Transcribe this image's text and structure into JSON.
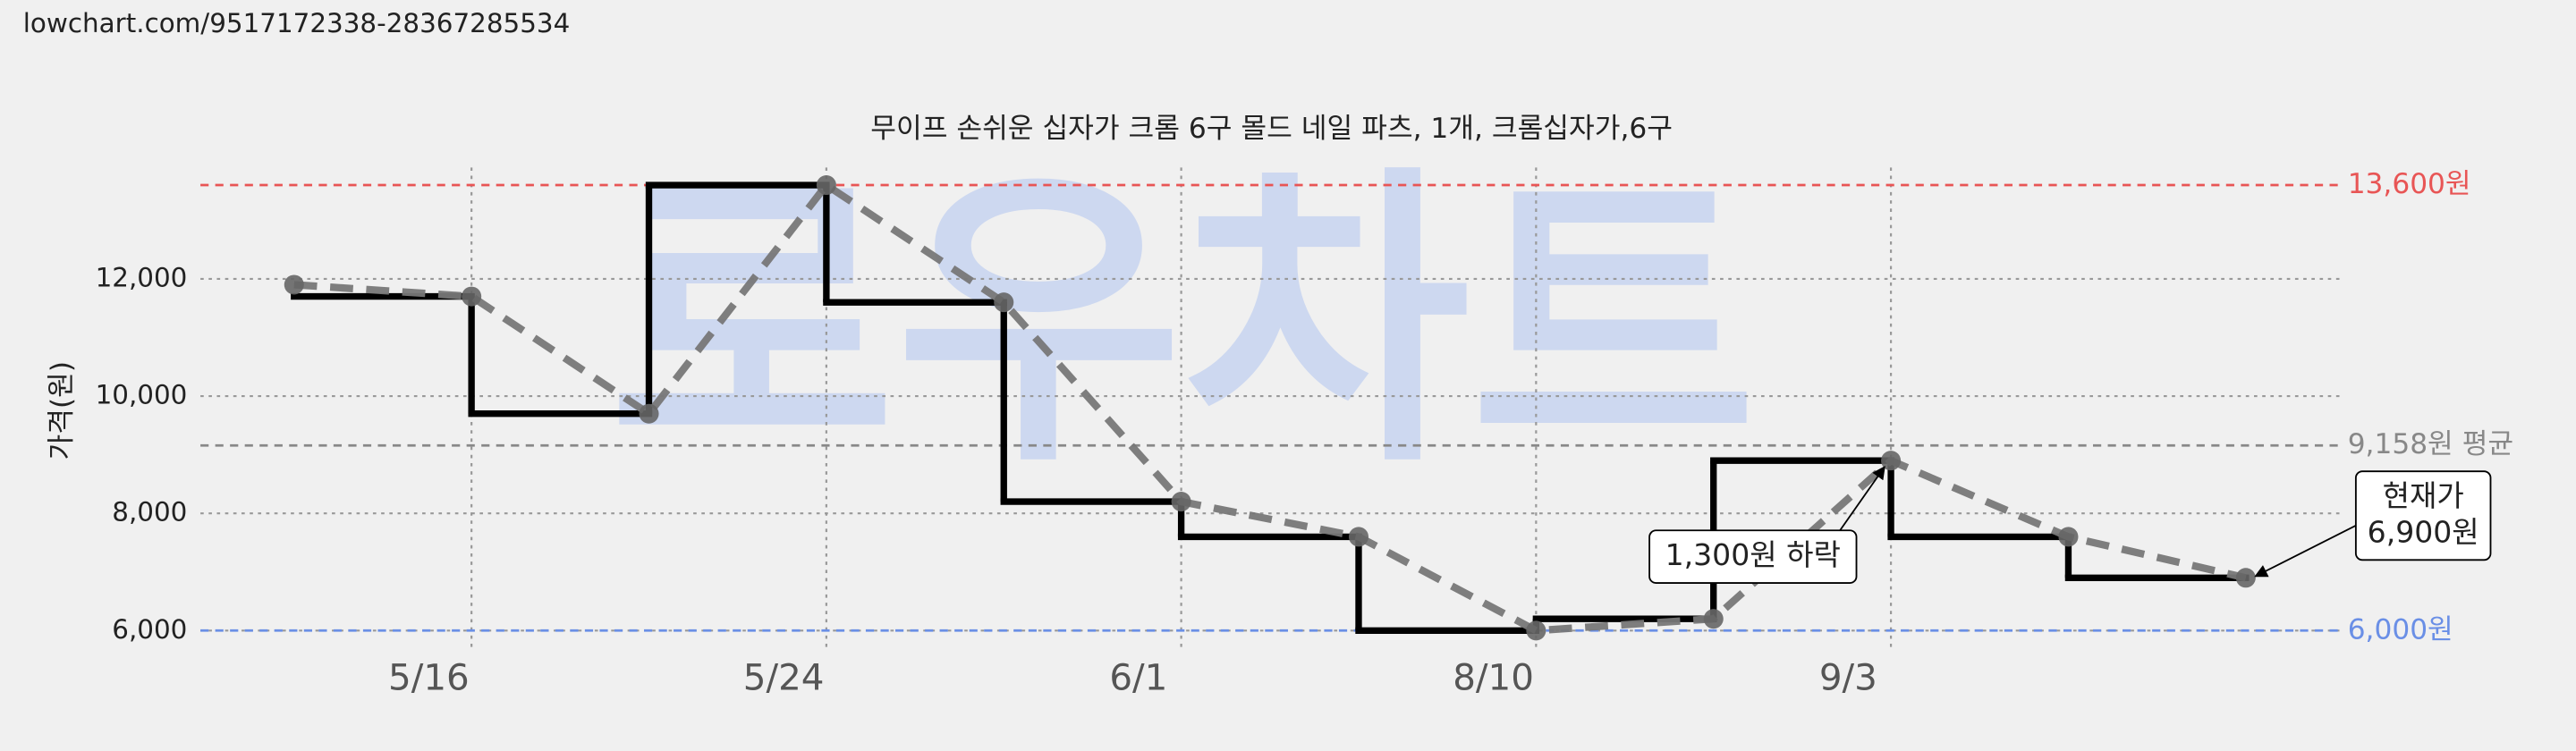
{
  "url": "lowchart.com/9517172338-28367285534",
  "chart_data": {
    "type": "step-line",
    "title": "무이프 손쉬운 십자가 크롬 6구 몰드 네일 파츠, 1개, 크롬십자가,6구",
    "watermark": "로우차트",
    "y_label": "가격(원)",
    "categories": [
      null,
      "5/16",
      null,
      "5/24",
      null,
      "6/1",
      null,
      "8/10",
      null,
      "9/3",
      null,
      null
    ],
    "values": [
      11900,
      11700,
      9700,
      13600,
      11600,
      8200,
      7600,
      6000,
      6200,
      8900,
      7600,
      6900
    ],
    "ylim": [
      5700,
      13900
    ],
    "yticks": [
      {
        "value": 6000,
        "label": "6,000"
      },
      {
        "value": 8000,
        "label": "8,000"
      },
      {
        "value": 10000,
        "label": "10,000"
      },
      {
        "value": 12000,
        "label": "12,000"
      }
    ],
    "grid": true,
    "step_color": "#000000",
    "trend_color": "#777777",
    "reference_lines": [
      {
        "value": 13600,
        "label": "13,600원",
        "color": "#e85555"
      },
      {
        "value": 9158,
        "label": "9,158원 평균",
        "color": "#888888"
      },
      {
        "value": 6000,
        "label": "6,000원",
        "color": "#6a8fe6"
      }
    ],
    "annotations": [
      {
        "text": [
          "1,300원 하락"
        ],
        "index": 9
      },
      {
        "text": [
          "현재가",
          "6,900원"
        ],
        "index": 11
      }
    ]
  }
}
